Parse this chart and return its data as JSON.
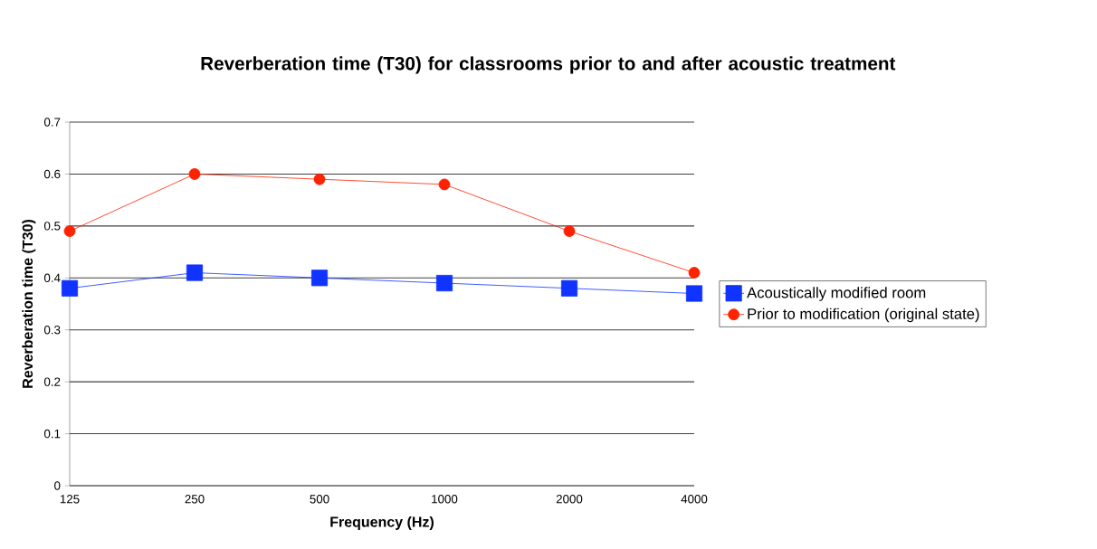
{
  "chart_data": {
    "type": "line",
    "title": "Reverberation time (T30) for classrooms prior to and after acoustic treatment",
    "xlabel": "Frequency (Hz)",
    "ylabel": "Reverberation time  (T30)",
    "categories": [
      "125",
      "250",
      "500",
      "1000",
      "2000",
      "4000"
    ],
    "series": [
      {
        "name": "Acoustically modified room",
        "color": "#1133ff",
        "marker": "square",
        "values": [
          0.38,
          0.41,
          0.4,
          0.39,
          0.38,
          0.37
        ]
      },
      {
        "name": "Prior to modification (original state)",
        "color": "#ff2200",
        "marker": "circle",
        "values": [
          0.49,
          0.6,
          0.59,
          0.58,
          0.49,
          0.41
        ]
      }
    ],
    "ylim": [
      0,
      0.7
    ],
    "yticks": [
      0,
      0.1,
      0.2,
      0.3,
      0.4,
      0.5,
      0.6,
      0.7
    ],
    "grid": "y",
    "legend": "right"
  }
}
